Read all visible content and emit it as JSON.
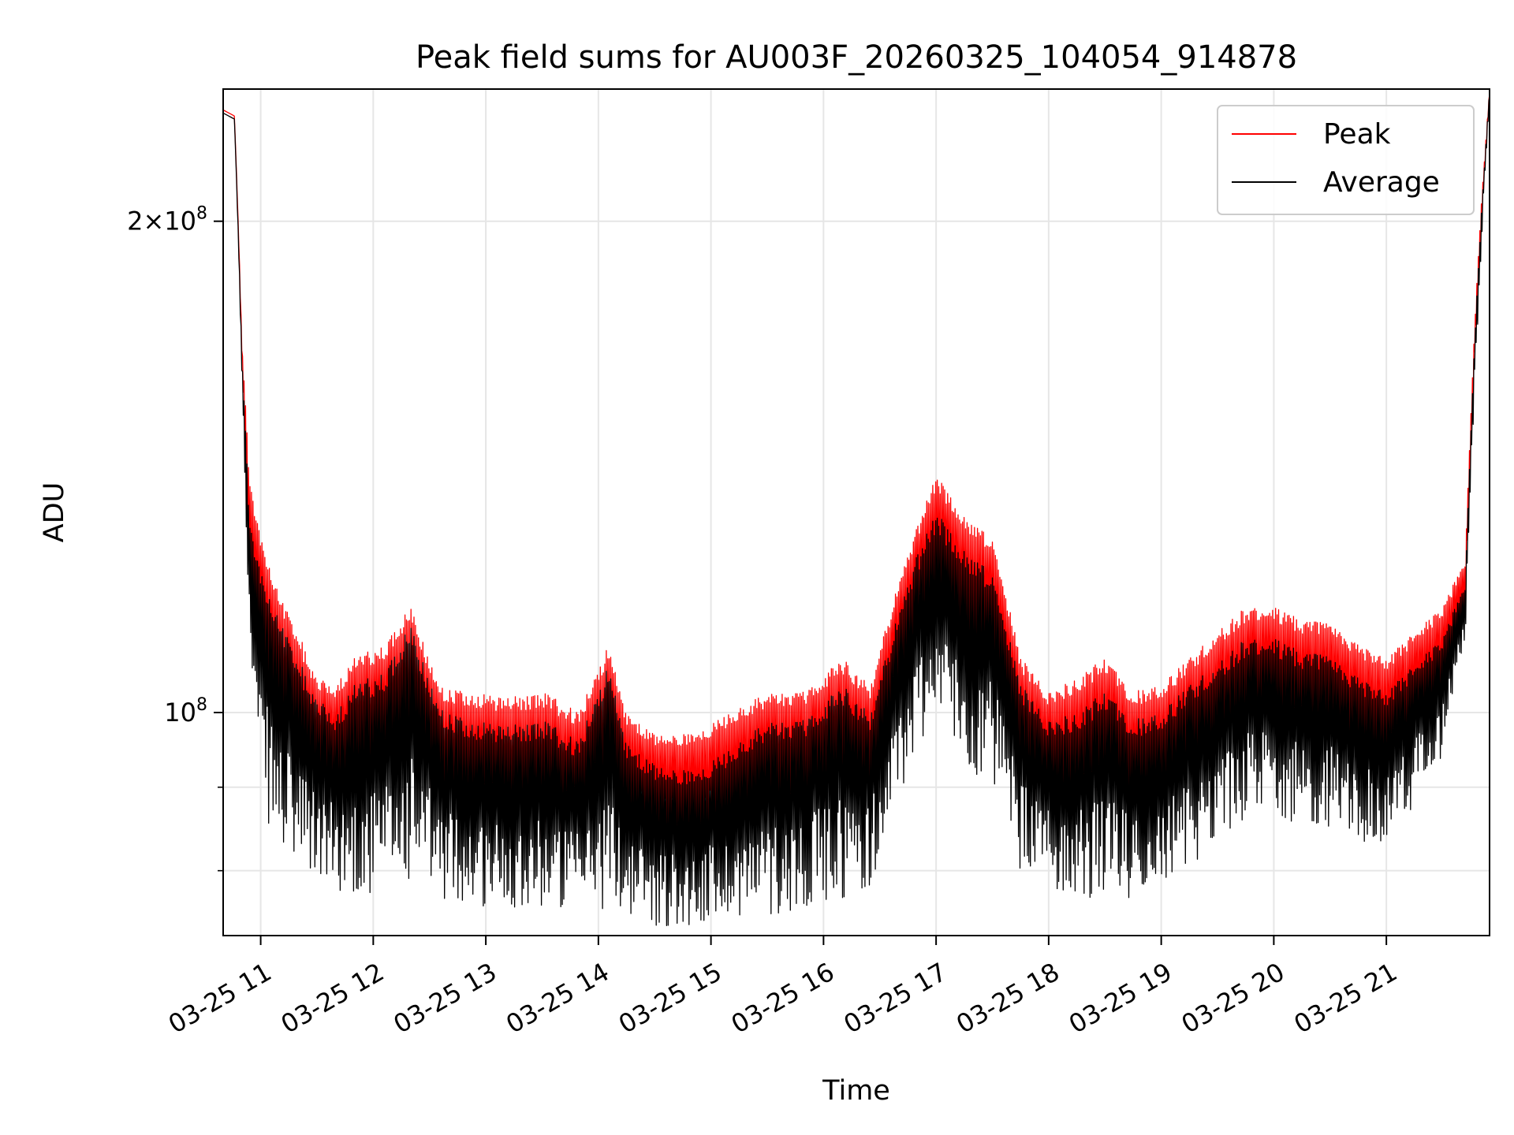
{
  "chart_data": {
    "type": "line",
    "title": "Peak field sums for AU003F_20260325_104054_914878",
    "xlabel": "Time",
    "ylabel": "ADU",
    "x_start": "2026-03-25 10:40",
    "x_end": "2026-03-25 21:55",
    "xlim": [
      "2026-03-25 10:40",
      "2026-03-25 21:55"
    ],
    "ylim": [
      73000000,
      241000000
    ],
    "yscale": "log",
    "grid": true,
    "legend_position": "top-right",
    "x_ticks": [
      {
        "time": "2026-03-25 11:00",
        "label": "03-25 11"
      },
      {
        "time": "2026-03-25 12:00",
        "label": "03-25 12"
      },
      {
        "time": "2026-03-25 13:00",
        "label": "03-25 13"
      },
      {
        "time": "2026-03-25 14:00",
        "label": "03-25 14"
      },
      {
        "time": "2026-03-25 15:00",
        "label": "03-25 15"
      },
      {
        "time": "2026-03-25 16:00",
        "label": "03-25 16"
      },
      {
        "time": "2026-03-25 17:00",
        "label": "03-25 17"
      },
      {
        "time": "2026-03-25 18:00",
        "label": "03-25 18"
      },
      {
        "time": "2026-03-25 19:00",
        "label": "03-25 19"
      },
      {
        "time": "2026-03-25 20:00",
        "label": "03-25 20"
      },
      {
        "time": "2026-03-25 21:00",
        "label": "03-25 21"
      }
    ],
    "y_ticks": [
      {
        "value": 100000000,
        "mantissa": "",
        "exponent": "8"
      },
      {
        "value": 200000000,
        "mantissa": "2",
        "exponent": "8"
      }
    ],
    "y_minor_ticks": [
      80000000,
      90000000
    ],
    "x_hours_relative_note_removed": true,
    "profile_times": [
      "2026-03-25 10:40",
      "2026-03-25 10:46",
      "2026-03-25 10:50",
      "2026-03-25 10:54",
      "2026-03-25 11:00",
      "2026-03-25 11:10",
      "2026-03-25 11:20",
      "2026-03-25 11:30",
      "2026-03-25 11:40",
      "2026-03-25 11:50",
      "2026-03-25 12:05",
      "2026-03-25 12:20",
      "2026-03-25 12:35",
      "2026-03-25 12:50",
      "2026-03-25 13:10",
      "2026-03-25 13:30",
      "2026-03-25 13:50",
      "2026-03-25 14:05",
      "2026-03-25 14:15",
      "2026-03-25 14:30",
      "2026-03-25 14:50",
      "2026-03-25 15:10",
      "2026-03-25 15:30",
      "2026-03-25 15:50",
      "2026-03-25 16:10",
      "2026-03-25 16:25",
      "2026-03-25 16:40",
      "2026-03-25 16:50",
      "2026-03-25 17:00",
      "2026-03-25 17:15",
      "2026-03-25 17:30",
      "2026-03-25 17:45",
      "2026-03-25 18:00",
      "2026-03-25 18:15",
      "2026-03-25 18:30",
      "2026-03-25 18:45",
      "2026-03-25 19:00",
      "2026-03-25 19:15",
      "2026-03-25 19:30",
      "2026-03-25 19:45",
      "2026-03-25 20:00",
      "2026-03-25 20:15",
      "2026-03-25 20:30",
      "2026-03-25 20:45",
      "2026-03-25 21:00",
      "2026-03-25 21:15",
      "2026-03-25 21:30",
      "2026-03-25 21:42",
      "2026-03-25 21:50",
      "2026-03-25 21:55"
    ],
    "series": [
      {
        "name": "Peak",
        "color": "#ff0000",
        "upper": [
          234000000,
          232000000,
          168000000,
          140000000,
          128000000,
          118000000,
          112000000,
          105000000,
          104000000,
          108000000,
          110000000,
          116000000,
          104000000,
          103000000,
          102000000,
          103000000,
          100000000,
          110000000,
          100000000,
          97000000,
          97000000,
          100000000,
          103000000,
          103000000,
          108000000,
          104000000,
          120000000,
          130000000,
          140000000,
          132000000,
          128000000,
          108000000,
          103000000,
          105000000,
          108000000,
          103000000,
          104000000,
          108000000,
          112000000,
          116000000,
          116000000,
          114000000,
          114000000,
          110000000,
          108000000,
          112000000,
          116000000,
          124000000,
          200000000,
          241000000
        ],
        "lower": [
          234000000,
          232000000,
          165000000,
          115000000,
          102000000,
          92000000,
          88000000,
          86000000,
          88000000,
          88000000,
          88000000,
          90000000,
          85000000,
          84000000,
          83000000,
          83000000,
          82000000,
          85000000,
          84000000,
          83000000,
          82000000,
          83000000,
          84000000,
          85000000,
          86000000,
          86000000,
          100000000,
          110000000,
          115000000,
          108000000,
          104000000,
          88000000,
          85000000,
          86000000,
          86000000,
          85000000,
          86000000,
          88000000,
          92000000,
          95000000,
          96000000,
          94000000,
          94000000,
          92000000,
          90000000,
          95000000,
          100000000,
          114000000,
          190000000,
          239000000
        ]
      },
      {
        "name": "Average",
        "color": "#000000",
        "upper": [
          233000000,
          231000000,
          165000000,
          132000000,
          122000000,
          114000000,
          108000000,
          102000000,
          100000000,
          104000000,
          106000000,
          113000000,
          101000000,
          99000000,
          98000000,
          99000000,
          96000000,
          107000000,
          96000000,
          93000000,
          92000000,
          95000000,
          99000000,
          99000000,
          104000000,
          100000000,
          115000000,
          125000000,
          133000000,
          126000000,
          122000000,
          104000000,
          99000000,
          100000000,
          103000000,
          99000000,
          100000000,
          104000000,
          107000000,
          111000000,
          111000000,
          109000000,
          109000000,
          105000000,
          103000000,
          107000000,
          111000000,
          120000000,
          197000000,
          241000000
        ],
        "lower": [
          233000000,
          231000000,
          160000000,
          108000000,
          88000000,
          82000000,
          80000000,
          79000000,
          78000000,
          77000000,
          77000000,
          79000000,
          77000000,
          76000000,
          76000000,
          76000000,
          75000000,
          76000000,
          75000000,
          74000000,
          74000000,
          75000000,
          75000000,
          76000000,
          77000000,
          78000000,
          88000000,
          95000000,
          100000000,
          92000000,
          90000000,
          80000000,
          78000000,
          77000000,
          77000000,
          77000000,
          78000000,
          80000000,
          84000000,
          86000000,
          87000000,
          85000000,
          85000000,
          83000000,
          82000000,
          88000000,
          94000000,
          110000000,
          185000000,
          238000000
        ]
      }
    ]
  }
}
